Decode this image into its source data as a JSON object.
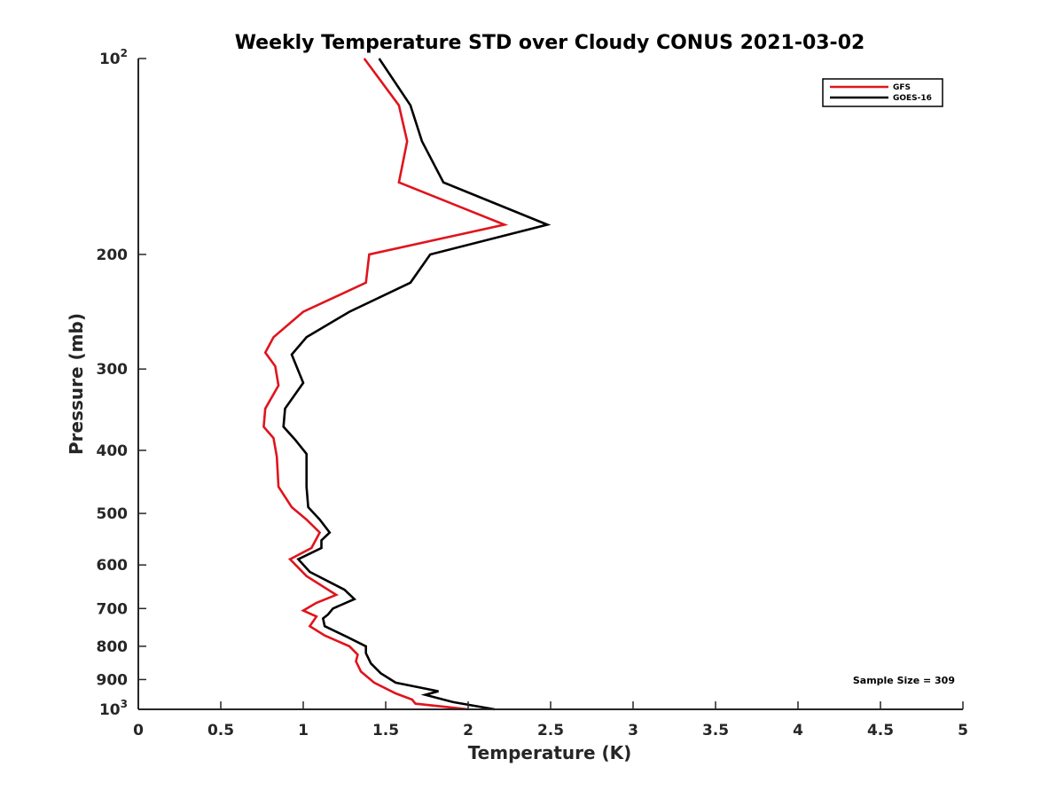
{
  "chart_data": {
    "type": "line",
    "title": "Weekly Temperature STD over Cloudy CONUS 2021-03-02",
    "xlabel": "Temperature (K)",
    "ylabel": "Pressure (mb)",
    "xlim": [
      0,
      5
    ],
    "ylim": [
      100,
      1000
    ],
    "y_scale": "log",
    "y_reversed": true,
    "xticks": [
      0,
      0.5,
      1,
      1.5,
      2,
      2.5,
      3,
      3.5,
      4,
      4.5,
      5
    ],
    "xtick_labels": [
      "0",
      "0.5",
      "1",
      "1.5",
      "2",
      "2.5",
      "3",
      "3.5",
      "4",
      "4.5",
      "5"
    ],
    "yticks": [
      100,
      200,
      300,
      400,
      500,
      600,
      700,
      800,
      900,
      1000
    ],
    "ytick_labels": [
      {
        "base": "10",
        "exp": "2"
      },
      {
        "base": "200",
        "exp": ""
      },
      {
        "base": "300",
        "exp": ""
      },
      {
        "base": "400",
        "exp": ""
      },
      {
        "base": "500",
        "exp": ""
      },
      {
        "base": "600",
        "exp": ""
      },
      {
        "base": "700",
        "exp": ""
      },
      {
        "base": "800",
        "exp": ""
      },
      {
        "base": "900",
        "exp": ""
      },
      {
        "base": "10",
        "exp": "3"
      }
    ],
    "grid": false,
    "legend_position": "top-right",
    "annotation": "Sample Size = 309",
    "series": [
      {
        "name": "GFS",
        "color": "#e0141c",
        "points": [
          [
            1.37,
            100
          ],
          [
            1.58,
            118
          ],
          [
            1.63,
            134
          ],
          [
            1.58,
            155
          ],
          [
            2.22,
            180
          ],
          [
            1.4,
            200
          ],
          [
            1.38,
            221
          ],
          [
            1.0,
            245
          ],
          [
            0.82,
            268
          ],
          [
            0.77,
            283
          ],
          [
            0.83,
            297
          ],
          [
            0.85,
            318
          ],
          [
            0.77,
            345
          ],
          [
            0.76,
            368
          ],
          [
            0.82,
            383
          ],
          [
            0.84,
            409
          ],
          [
            0.85,
            455
          ],
          [
            0.93,
            489
          ],
          [
            1.02,
            511
          ],
          [
            1.1,
            535
          ],
          [
            1.05,
            565
          ],
          [
            0.92,
            588
          ],
          [
            1.02,
            624
          ],
          [
            1.2,
            667
          ],
          [
            1.08,
            686
          ],
          [
            1.0,
            705
          ],
          [
            1.08,
            720
          ],
          [
            1.04,
            745
          ],
          [
            1.13,
            770
          ],
          [
            1.28,
            800
          ],
          [
            1.33,
            824
          ],
          [
            1.32,
            844
          ],
          [
            1.35,
            875
          ],
          [
            1.43,
            910
          ],
          [
            1.56,
            945
          ],
          [
            1.66,
            966
          ],
          [
            1.68,
            980
          ],
          [
            2.0,
            1000
          ]
        ]
      },
      {
        "name": "GOES-16",
        "color": "#000000",
        "points": [
          [
            1.46,
            100
          ],
          [
            1.65,
            118
          ],
          [
            1.72,
            134
          ],
          [
            1.85,
            155
          ],
          [
            2.48,
            180
          ],
          [
            1.77,
            200
          ],
          [
            1.65,
            221
          ],
          [
            1.28,
            245
          ],
          [
            1.02,
            268
          ],
          [
            0.93,
            285
          ],
          [
            1.0,
            315
          ],
          [
            0.89,
            345
          ],
          [
            0.88,
            368
          ],
          [
            0.95,
            385
          ],
          [
            1.02,
            405
          ],
          [
            1.02,
            455
          ],
          [
            1.03,
            489
          ],
          [
            1.1,
            511
          ],
          [
            1.16,
            535
          ],
          [
            1.11,
            550
          ],
          [
            1.11,
            565
          ],
          [
            0.97,
            588
          ],
          [
            1.04,
            615
          ],
          [
            1.25,
            655
          ],
          [
            1.31,
            677
          ],
          [
            1.18,
            700
          ],
          [
            1.15,
            715
          ],
          [
            1.12,
            725
          ],
          [
            1.13,
            745
          ],
          [
            1.27,
            775
          ],
          [
            1.38,
            800
          ],
          [
            1.38,
            820
          ],
          [
            1.41,
            850
          ],
          [
            1.47,
            880
          ],
          [
            1.56,
            910
          ],
          [
            1.82,
            938
          ],
          [
            1.74,
            950
          ],
          [
            1.91,
            975
          ],
          [
            2.16,
            1000
          ]
        ]
      }
    ]
  }
}
